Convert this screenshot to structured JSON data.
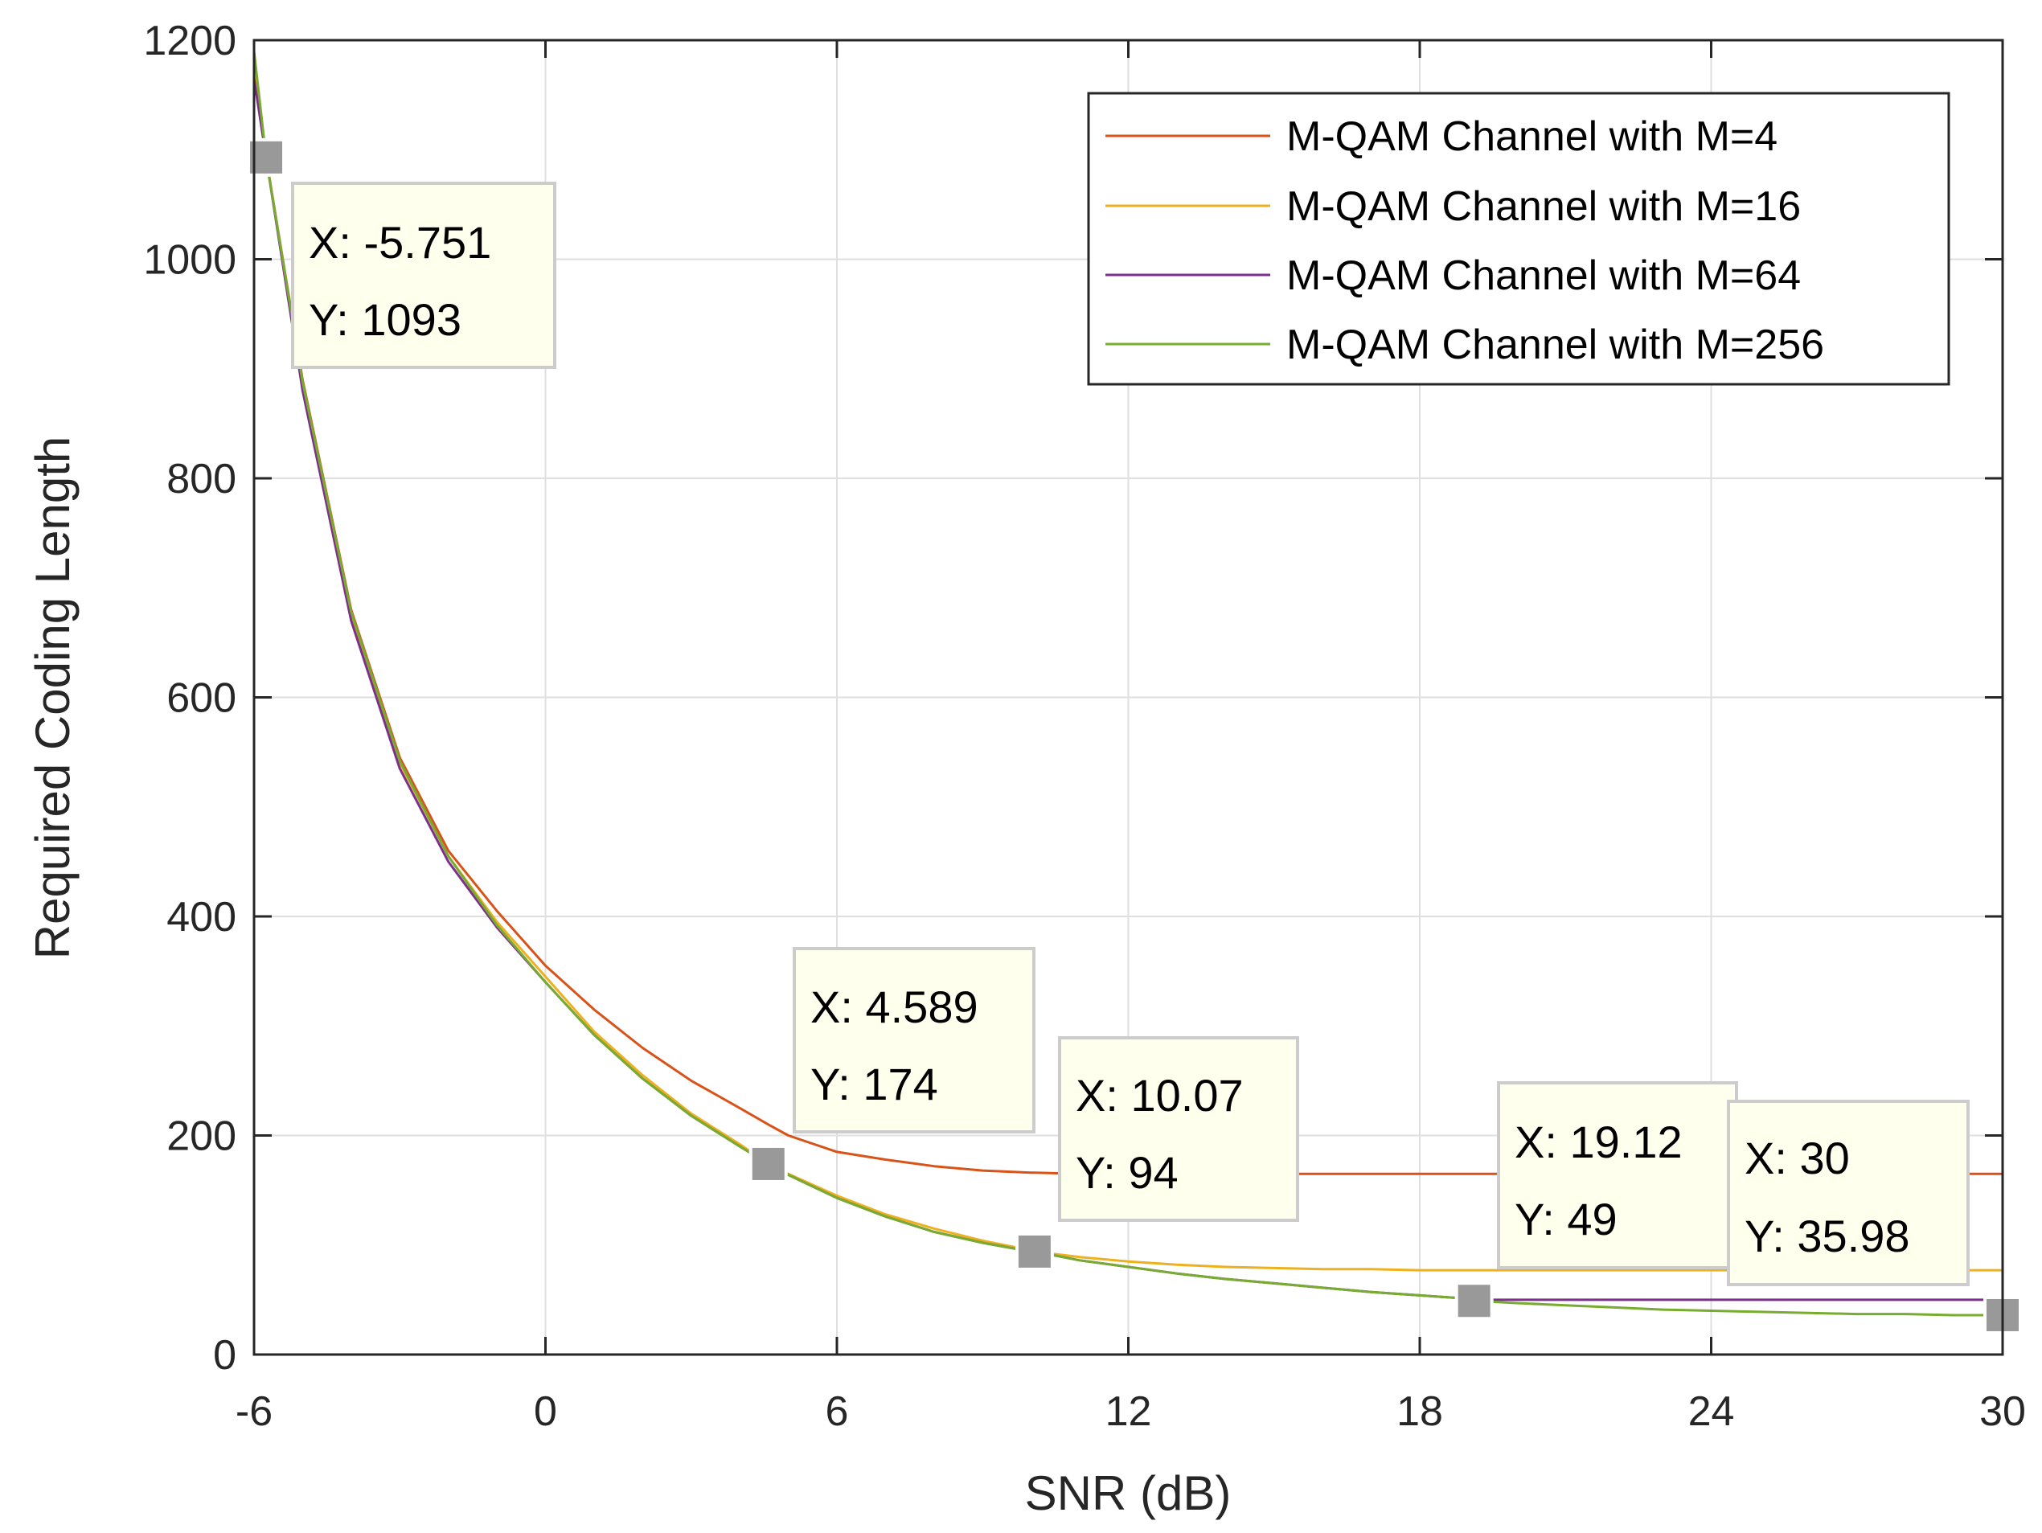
{
  "chart_data": {
    "type": "line",
    "title": "",
    "xlabel": "SNR (dB)",
    "ylabel": "Required Coding Length",
    "xlim": [
      -6,
      30
    ],
    "ylim": [
      0,
      1200
    ],
    "xticks": [
      -6,
      0,
      6,
      12,
      18,
      24,
      30
    ],
    "yticks": [
      0,
      200,
      400,
      600,
      800,
      1000,
      1200
    ],
    "xtick_labels": [
      "-6",
      "0",
      "6",
      "12",
      "18",
      "24",
      "30"
    ],
    "ytick_labels": [
      "0",
      "200",
      "400",
      "600",
      "800",
      "1000",
      "1200"
    ],
    "grid": true,
    "legend_position": "top-right",
    "x": [
      -6,
      -5.751,
      -5,
      -4,
      -3,
      -2,
      -1,
      0,
      1,
      2,
      3,
      4,
      4.589,
      5,
      6,
      7,
      8,
      9,
      10,
      10.07,
      11,
      12,
      13,
      14,
      15,
      16,
      17,
      18,
      19,
      19.12,
      20,
      21,
      22,
      23,
      24,
      25,
      26,
      27,
      28,
      29,
      30
    ],
    "series": [
      {
        "name": "M-QAM Channel with M=4",
        "color": "#D95319",
        "values": [
          1170,
          1093,
          890,
          680,
          545,
          460,
          405,
          355,
          315,
          280,
          250,
          225,
          210,
          200,
          185,
          178,
          172,
          168,
          166,
          166,
          165,
          165,
          165,
          165,
          165,
          165,
          165,
          165,
          165,
          165,
          165,
          165,
          165,
          165,
          165,
          165,
          165,
          165,
          165,
          165,
          165
        ]
      },
      {
        "name": "M-QAM Channel with M=16",
        "color": "#EDB120",
        "values": [
          1180,
          1093,
          885,
          675,
          540,
          455,
          395,
          345,
          295,
          255,
          220,
          192,
          174,
          165,
          145,
          128,
          115,
          104,
          95,
          94,
          89,
          85,
          82,
          80,
          79,
          78,
          78,
          77,
          77,
          77,
          77,
          77,
          77,
          77,
          77,
          77,
          77,
          77,
          77,
          77,
          77
        ]
      },
      {
        "name": "M-QAM Channel with M=64",
        "color": "#7E2F8E",
        "values": [
          1165,
          1093,
          880,
          670,
          535,
          450,
          390,
          340,
          292,
          252,
          218,
          190,
          174,
          164,
          143,
          126,
          112,
          102,
          94,
          94,
          86,
          80,
          74,
          69,
          65,
          61,
          57,
          54,
          51,
          50,
          50,
          50,
          50,
          50,
          50,
          50,
          50,
          50,
          50,
          50,
          50
        ]
      },
      {
        "name": "M-QAM Channel with M=256",
        "color": "#77AC30",
        "values": [
          1190,
          1093,
          888,
          678,
          542,
          455,
          392,
          340,
          292,
          252,
          218,
          190,
          174,
          164,
          143,
          126,
          112,
          102,
          94,
          94,
          86,
          80,
          74,
          69,
          65,
          61,
          57,
          54,
          51,
          49,
          47,
          45,
          43,
          41,
          40,
          39,
          38,
          37,
          37,
          36,
          36
        ]
      }
    ],
    "datatips": [
      {
        "x": -5.751,
        "y": 1093,
        "x_text": "X: -5.751",
        "y_text": "Y: 1093",
        "box_side": "right-below"
      },
      {
        "x": 4.589,
        "y": 174,
        "x_text": "X: 4.589",
        "y_text": "Y: 174",
        "box_side": "right-above"
      },
      {
        "x": 10.07,
        "y": 94,
        "x_text": "X: 10.07",
        "y_text": "Y: 94",
        "box_side": "right-above"
      },
      {
        "x": 19.12,
        "y": 49,
        "x_text": "X: 19.12",
        "y_text": "Y: 49",
        "box_side": "right-above"
      },
      {
        "x": 30,
        "y": 35.98,
        "x_text": "X: 30",
        "y_text": "Y: 35.98",
        "box_side": "left-above"
      }
    ]
  }
}
